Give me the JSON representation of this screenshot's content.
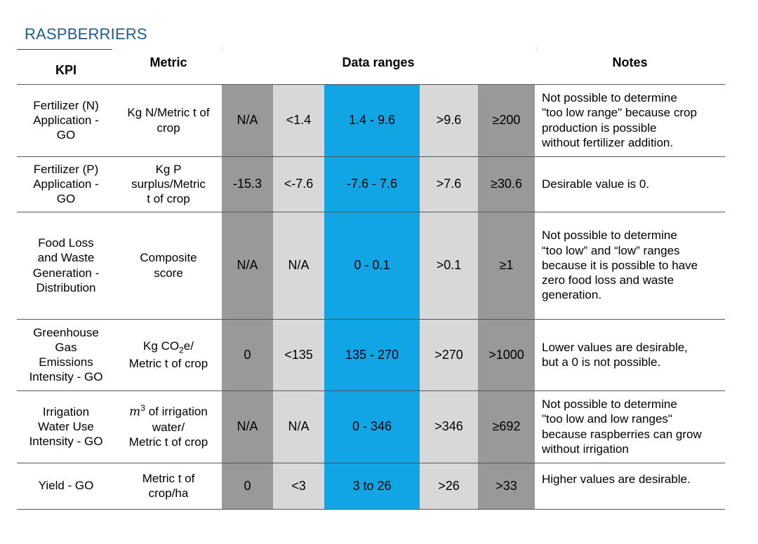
{
  "title": "RASPBERRIERS",
  "headers": {
    "kpi": "KPI",
    "metric": "Metric",
    "data_ranges": "Data ranges",
    "notes": "Notes"
  },
  "rows": [
    {
      "kpi": [
        "Fertilizer (N)",
        "Application -",
        "GO"
      ],
      "metric": [
        "Kg N/Metric t of",
        "crop"
      ],
      "ranges": [
        "N/A",
        "<1.4",
        "1.4 - 9.6",
        ">9.6",
        "≥200"
      ],
      "notes": [
        "Not possible to determine",
        "\"too low range\" because crop",
        "production is possible",
        "without fertilizer addition."
      ]
    },
    {
      "kpi": [
        "Fertilizer (P)",
        "Application -",
        "GO"
      ],
      "metric": [
        "Kg P",
        "surplus/Metric",
        "t of crop"
      ],
      "ranges": [
        "-15.3",
        "<-7.6",
        "-7.6 - 7.6",
        ">7.6",
        "≥30.6"
      ],
      "notes": [
        "Desirable value is 0."
      ]
    },
    {
      "kpi": [
        "Food Loss",
        "and Waste",
        "Generation -",
        "Distribution"
      ],
      "metric": [
        "Composite",
        "score"
      ],
      "ranges": [
        "N/A",
        "N/A",
        "0 - 0.1",
        ">0.1",
        "≥1"
      ],
      "notes": [
        "Not possible to determine",
        "“too low” and “low” ranges",
        "because it is possible to have",
        "zero food loss and waste",
        "generation."
      ]
    },
    {
      "kpi": [
        "Greenhouse",
        "Gas",
        "Emissions",
        "Intensity - GO"
      ],
      "metric_parts": {
        "pre": "Kg CO",
        "sub": "2",
        "post": "e/"
      },
      "metric": [
        "Kg CO₂e/",
        "Metric t of crop"
      ],
      "ranges": [
        "0",
        "<135",
        "135 - 270",
        ">270",
        ">1000"
      ],
      "notes": [
        "Lower values are desirable,",
        "but a 0 is not possible."
      ]
    },
    {
      "kpi": [
        "Irrigation",
        "Water Use",
        "Intensity - GO"
      ],
      "metric_parts": {
        "unit": "m",
        "sup": "3",
        "post": " of irrigation"
      },
      "metric": [
        "m³ of irrigation",
        "water/",
        "Metric t of crop"
      ],
      "ranges": [
        "N/A",
        "N/A",
        "0 - 346",
        ">346",
        "≥692"
      ],
      "notes": [
        "Not possible to determine",
        "\"too low and low ranges\"",
        "because raspberries can grow",
        "without irrigation"
      ]
    },
    {
      "kpi": [
        "Yield - GO"
      ],
      "metric": [
        "Metric t of",
        "crop/ha"
      ],
      "ranges": [
        "0",
        "<3",
        "3 to 26",
        ">26",
        ">33"
      ],
      "notes": [
        "Higher values are desirable."
      ]
    }
  ]
}
